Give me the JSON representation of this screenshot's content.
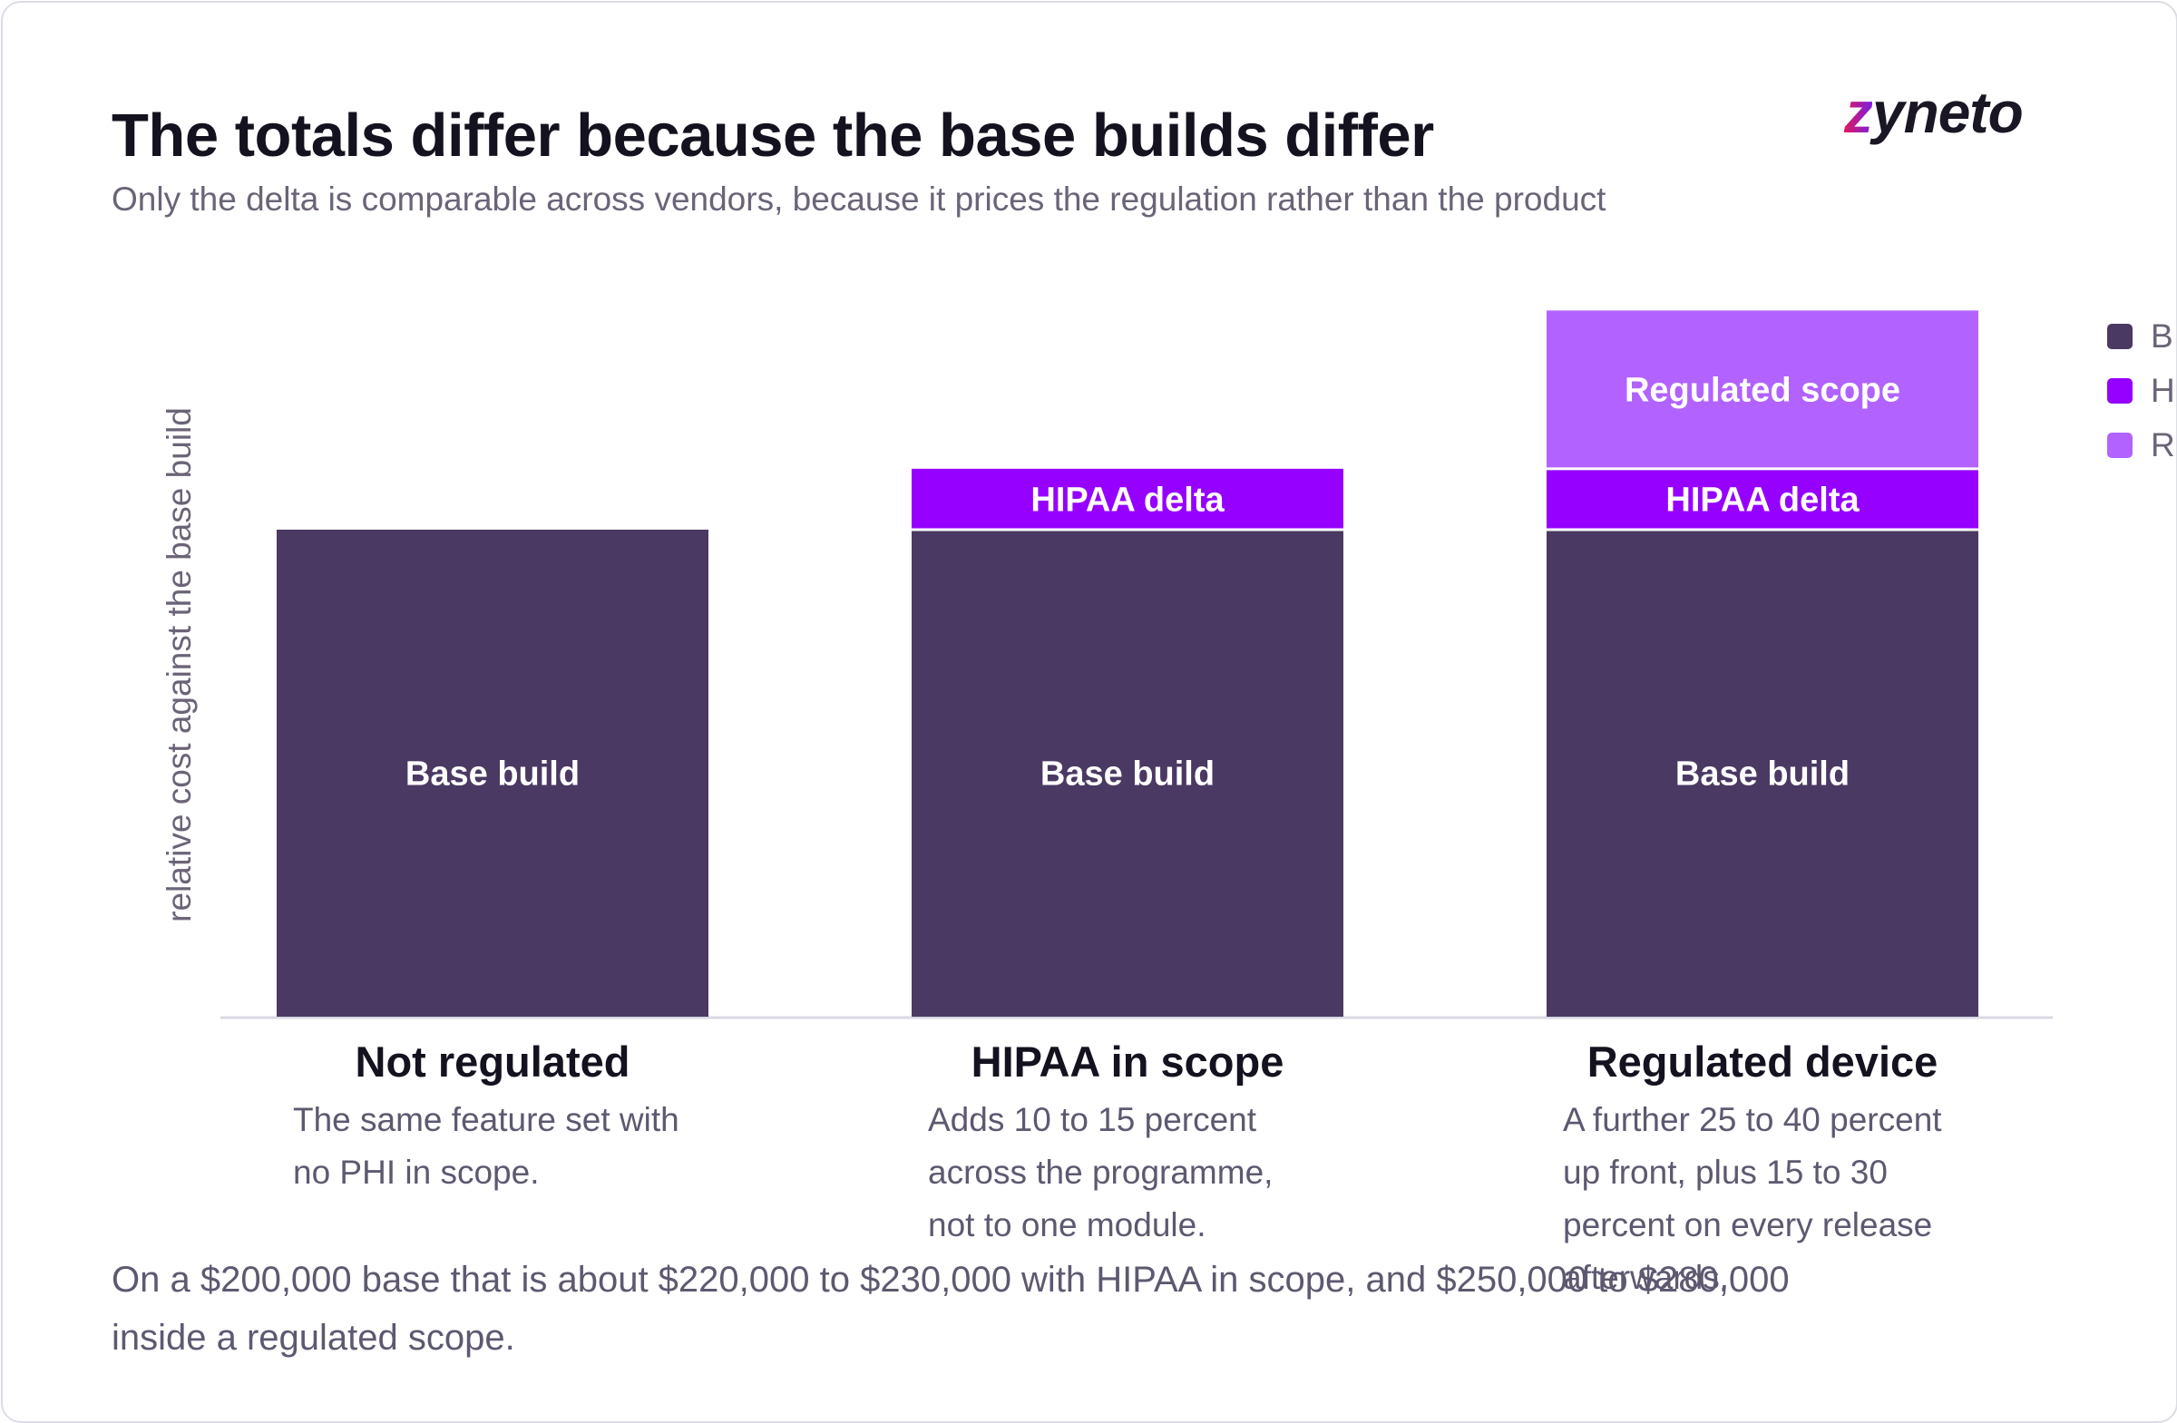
{
  "header": {
    "title": "The totals differ because the base builds differ",
    "subtitle": "Only the delta is comparable across vendors, because it prices the regulation rather than the product",
    "logo_text": "zyneto"
  },
  "chart_data": {
    "type": "bar",
    "stacked": true,
    "categories": [
      "Not regulated",
      "HIPAA in scope",
      "Regulated device"
    ],
    "category_descriptions": [
      "The same feature set with no PHI in scope.",
      "Adds 10 to 15 percent across the programme, not to one module.",
      "A further 25 to 40 percent up front, plus 15 to 30 percent on every release afterwards."
    ],
    "ylabel": "relative cost against the base build",
    "ylim": [
      0,
      1.45
    ],
    "y_ticks_shown": false,
    "series": [
      {
        "name": "Base build",
        "color": "#4a3963",
        "values": [
          1.0,
          1.0,
          1.0
        ],
        "bar_labels": [
          "Base build",
          "Base build",
          "Base build"
        ]
      },
      {
        "name": "HIPAA delta",
        "color": "#9500ff",
        "values": [
          0,
          0.125,
          0.125
        ],
        "bar_labels": [
          "",
          "HIPAA delta",
          "HIPAA delta"
        ]
      },
      {
        "name": "Regulated scope",
        "color": "#b263ff",
        "values": [
          0,
          0,
          0.325
        ],
        "bar_labels": [
          "",
          "",
          "Regulated scope"
        ]
      }
    ],
    "legend_position": "right",
    "legend_labels_visible": [
      "B",
      "H",
      "R"
    ],
    "grid": false
  },
  "footnote": "On a $200,000 base that is about $220,000 to $230,000 with HIPAA in scope, and $250,000 to $280,000 inside a regulated scope."
}
